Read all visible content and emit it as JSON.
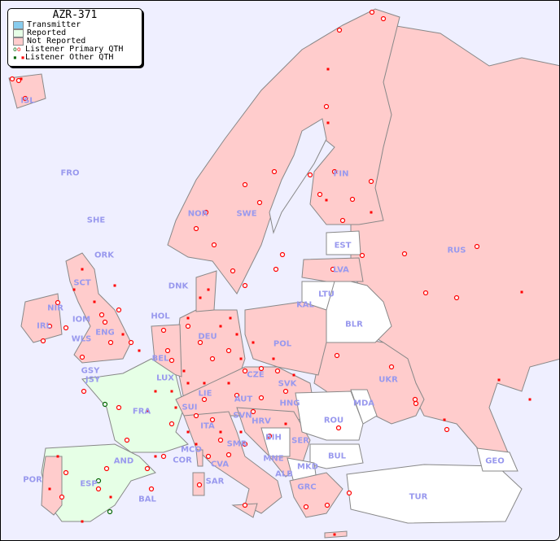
{
  "legend": {
    "title": "AZR-371",
    "items": [
      {
        "label": "Transmitter",
        "color": "#88ccee"
      },
      {
        "label": "Reported",
        "color": "#e6ffe6"
      },
      {
        "label": "Not Reported",
        "color": "#ffcccc"
      },
      {
        "label": "Listener Primary QTH",
        "marker": "circle"
      },
      {
        "label": "Listener Other QTH",
        "marker": "square"
      }
    ]
  },
  "colors": {
    "sea": "#efefff",
    "not_reported": "#ffcccc",
    "reported": "#e6ffe6",
    "unlisted": "#ffffff",
    "marker": "#ff0000",
    "marker_reported": "#006600",
    "label": "#9999ee"
  },
  "countries": [
    "ISL",
    "FRO",
    "SHE",
    "ORK",
    "NOR",
    "SWE",
    "FIN",
    "EST",
    "LVA",
    "LTU",
    "KAL",
    "BLR",
    "RUS",
    "UKR",
    "MDA",
    "ROU",
    "BUL",
    "TUR",
    "GEO",
    "DNK",
    "HOL",
    "BEL",
    "LUX",
    "DEU",
    "POL",
    "CZE",
    "SVK",
    "HNG",
    "AUT",
    "SUI",
    "LIE",
    "FRA",
    "GSY",
    "JSY",
    "ENG",
    "WLS",
    "IOM",
    "IRL",
    "NIR",
    "SCT",
    "ITA",
    "SVN",
    "HRV",
    "BIH",
    "SRB",
    "MNE",
    "ALB",
    "MKD",
    "GRC",
    "SMR",
    "CVA",
    "MCO",
    "COR",
    "SAR",
    "AND",
    "ESP",
    "POR",
    "BAL",
    "SER"
  ]
}
